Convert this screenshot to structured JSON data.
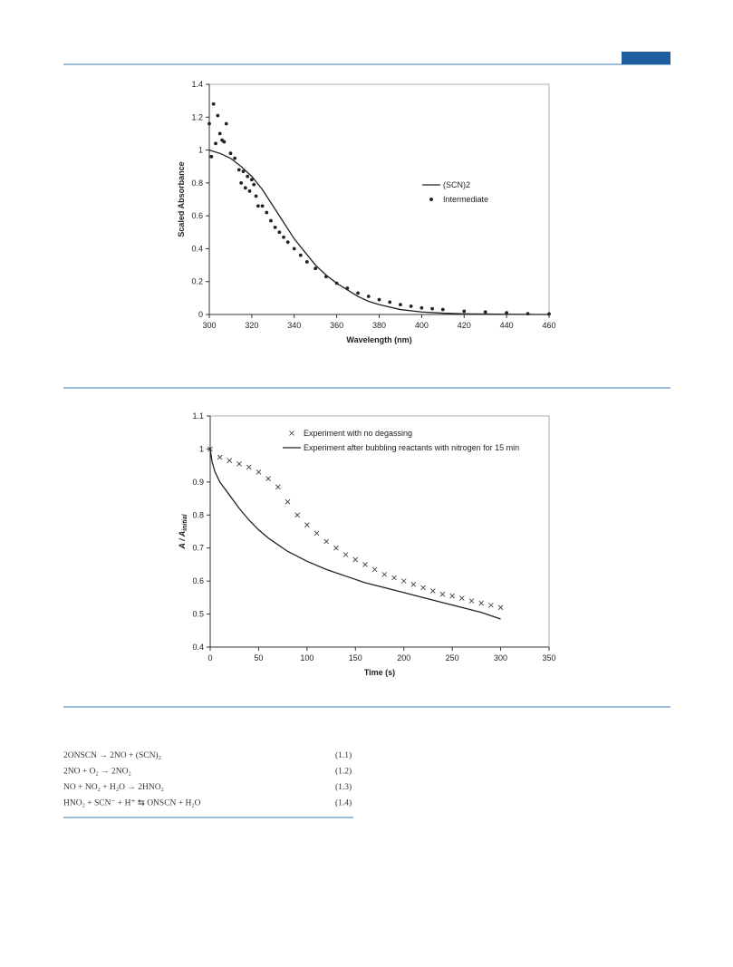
{
  "chart_data": [
    {
      "type": "line",
      "xlabel": "Wavelength (nm)",
      "ylabel": "Scaled Absorbance",
      "xlim": [
        300,
        460
      ],
      "xticks": [
        300,
        320,
        340,
        360,
        380,
        400,
        420,
        440,
        460
      ],
      "ylim": [
        0,
        1.4
      ],
      "yticks": [
        0,
        0.2,
        0.4,
        0.6,
        0.8,
        1,
        1.2,
        1.4
      ],
      "legend": "right",
      "series": [
        {
          "name": "(SCN)2",
          "mode": "line",
          "color": "#222",
          "x": [
            300,
            305,
            310,
            315,
            320,
            325,
            330,
            335,
            340,
            345,
            350,
            355,
            360,
            365,
            370,
            375,
            380,
            390,
            400,
            410,
            420,
            440,
            460
          ],
          "values": [
            1.0,
            0.98,
            0.95,
            0.9,
            0.84,
            0.76,
            0.66,
            0.56,
            0.46,
            0.38,
            0.3,
            0.24,
            0.19,
            0.15,
            0.11,
            0.08,
            0.06,
            0.03,
            0.015,
            0.008,
            0.004,
            0.001,
            0
          ]
        },
        {
          "name": "Intermediate",
          "mode": "markers",
          "marker": "circle",
          "color": "#222",
          "x": [
            300,
            301,
            302,
            303,
            304,
            305,
            306,
            307,
            308,
            310,
            312,
            314,
            315,
            316,
            317,
            318,
            319,
            320,
            321,
            322,
            323,
            325,
            327,
            329,
            331,
            333,
            335,
            337,
            340,
            343,
            346,
            350,
            355,
            360,
            365,
            370,
            375,
            380,
            385,
            390,
            395,
            400,
            405,
            410,
            420,
            430,
            440,
            450,
            460
          ],
          "values": [
            1.16,
            0.96,
            1.28,
            1.04,
            1.21,
            1.1,
            1.06,
            1.05,
            1.16,
            0.98,
            0.95,
            0.88,
            0.8,
            0.87,
            0.77,
            0.84,
            0.75,
            0.82,
            0.79,
            0.72,
            0.66,
            0.66,
            0.62,
            0.57,
            0.53,
            0.5,
            0.47,
            0.44,
            0.4,
            0.36,
            0.32,
            0.28,
            0.23,
            0.19,
            0.16,
            0.13,
            0.11,
            0.09,
            0.075,
            0.06,
            0.05,
            0.04,
            0.035,
            0.03,
            0.02,
            0.015,
            0.01,
            0.005,
            0.003
          ]
        }
      ]
    },
    {
      "type": "line",
      "xlabel": "Time (s)",
      "ylabel": "A / A",
      "ylabel_subscript": "initial",
      "xlim": [
        0,
        350
      ],
      "xticks": [
        0,
        50,
        100,
        150,
        200,
        250,
        300,
        350
      ],
      "ylim": [
        0.4,
        1.1
      ],
      "yticks": [
        0.4,
        0.5,
        0.6,
        0.7,
        0.8,
        0.9,
        1,
        1.1
      ],
      "legend": "upper left",
      "series": [
        {
          "name": "Experiment with no degassing",
          "mode": "markers",
          "marker": "x",
          "color": "#333",
          "x": [
            0,
            10,
            20,
            30,
            40,
            50,
            60,
            70,
            80,
            90,
            100,
            110,
            120,
            130,
            140,
            150,
            160,
            170,
            180,
            190,
            200,
            210,
            220,
            230,
            240,
            250,
            260,
            270,
            280,
            290,
            300
          ],
          "values": [
            1.0,
            0.975,
            0.965,
            0.955,
            0.945,
            0.93,
            0.91,
            0.885,
            0.84,
            0.8,
            0.77,
            0.745,
            0.72,
            0.7,
            0.68,
            0.665,
            0.65,
            0.635,
            0.62,
            0.61,
            0.6,
            0.59,
            0.58,
            0.57,
            0.56,
            0.555,
            0.548,
            0.54,
            0.533,
            0.527,
            0.52
          ]
        },
        {
          "name": "Experiment after bubbling reactants with nitrogen for 15 min",
          "mode": "line",
          "color": "#222",
          "x": [
            0,
            2,
            5,
            10,
            20,
            30,
            40,
            50,
            60,
            70,
            80,
            90,
            100,
            120,
            140,
            160,
            180,
            200,
            220,
            240,
            260,
            280,
            300
          ],
          "values": [
            1.0,
            0.96,
            0.93,
            0.9,
            0.86,
            0.82,
            0.785,
            0.755,
            0.73,
            0.71,
            0.69,
            0.675,
            0.66,
            0.635,
            0.615,
            0.595,
            0.58,
            0.565,
            0.55,
            0.535,
            0.52,
            0.505,
            0.485
          ]
        }
      ]
    }
  ],
  "equations": [
    {
      "text": "2ONSCN → 2NO + (SCN)₂",
      "number": "(1.1)"
    },
    {
      "text": "2NO + O₂ → 2NO₂",
      "number": "(1.2)"
    },
    {
      "text": "NO + NO₂ + H₂O → 2HNO₂",
      "number": "(1.3)"
    },
    {
      "text": "HNO₂ + SCN⁻ + H⁺ ⇆ ONSCN + H₂O",
      "number": "(1.4)"
    }
  ]
}
